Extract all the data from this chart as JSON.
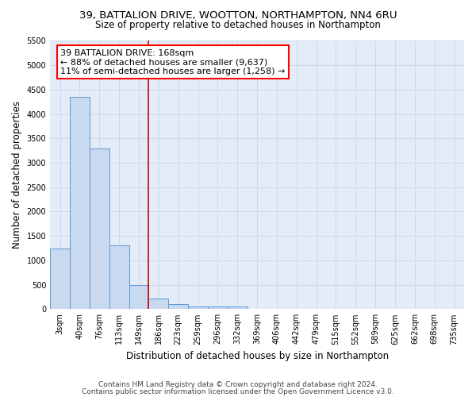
{
  "title1": "39, BATTALION DRIVE, WOOTTON, NORTHAMPTON, NN4 6RU",
  "title2": "Size of property relative to detached houses in Northampton",
  "xlabel": "Distribution of detached houses by size in Northampton",
  "ylabel": "Number of detached properties",
  "footnote1": "Contains HM Land Registry data © Crown copyright and database right 2024.",
  "footnote2": "Contains public sector information licensed under the Open Government Licence v3.0.",
  "categories": [
    "3sqm",
    "40sqm",
    "76sqm",
    "113sqm",
    "149sqm",
    "186sqm",
    "223sqm",
    "259sqm",
    "296sqm",
    "332sqm",
    "369sqm",
    "406sqm",
    "442sqm",
    "479sqm",
    "515sqm",
    "552sqm",
    "589sqm",
    "625sqm",
    "662sqm",
    "698sqm",
    "735sqm"
  ],
  "values": [
    1250,
    4350,
    3300,
    1300,
    500,
    220,
    100,
    60,
    60,
    60,
    0,
    0,
    0,
    0,
    0,
    0,
    0,
    0,
    0,
    0,
    0
  ],
  "bar_color": "#c9d9f0",
  "bar_edge_color": "#5b9bd5",
  "grid_color": "#cdd8ea",
  "background_color": "#e4ecf7",
  "vline_color": "#cc0000",
  "vline_x": 4.5,
  "annotation_text": "39 BATTALION DRIVE: 168sqm\n← 88% of detached houses are smaller (9,637)\n11% of semi-detached houses are larger (1,258) →",
  "ylim": [
    0,
    5500
  ],
  "yticks": [
    0,
    500,
    1000,
    1500,
    2000,
    2500,
    3000,
    3500,
    4000,
    4500,
    5000,
    5500
  ],
  "title1_fontsize": 9.5,
  "title2_fontsize": 8.5,
  "xlabel_fontsize": 8.5,
  "ylabel_fontsize": 8.5,
  "tick_fontsize": 7,
  "annotation_fontsize": 8,
  "footnote_fontsize": 6.5
}
